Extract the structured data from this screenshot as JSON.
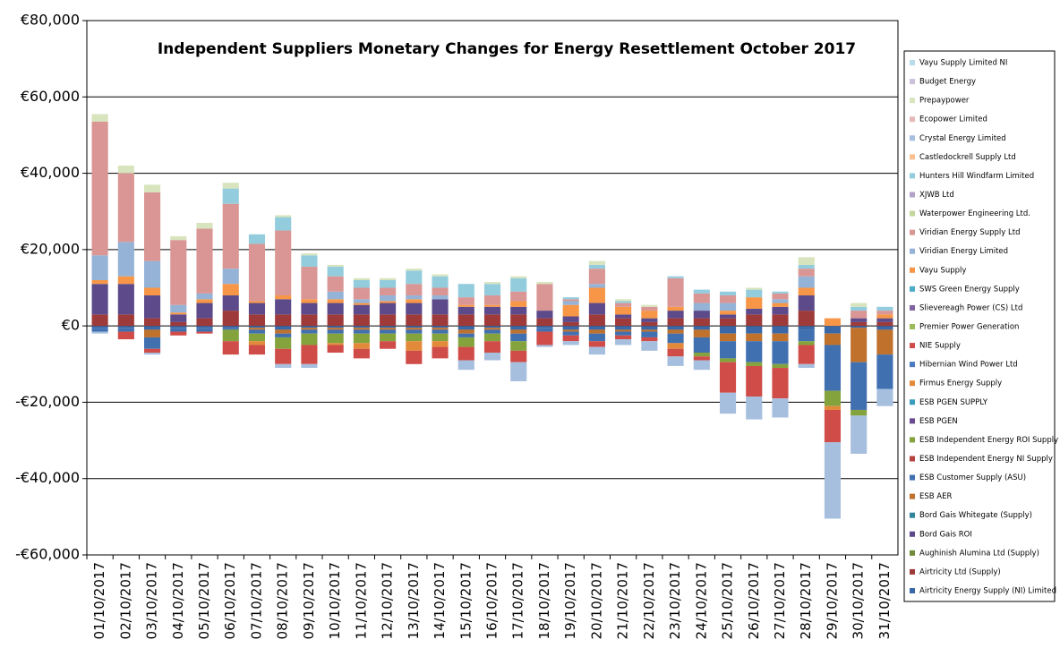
{
  "chart_data": {
    "type": "stacked_bar",
    "title": "Independent Suppliers Monetary Changes  for Energy Resettlement October 2017",
    "categories": [
      "01/10/2017",
      "02/10/2017",
      "03/10/2017",
      "04/10/2017",
      "05/10/2017",
      "06/10/2017",
      "07/10/2017",
      "08/10/2017",
      "09/10/2017",
      "10/10/2017",
      "11/10/2017",
      "12/10/2017",
      "13/10/2017",
      "14/10/2017",
      "15/10/2017",
      "16/10/2017",
      "17/10/2017",
      "18/10/2017",
      "19/10/2017",
      "20/10/2017",
      "21/10/2017",
      "22/10/2017",
      "23/10/2017",
      "24/10/2017",
      "25/10/2017",
      "26/10/2017",
      "27/10/2017",
      "28/10/2017",
      "29/10/2017",
      "30/10/2017",
      "31/10/2017"
    ],
    "ylim": [
      -60000,
      80000
    ],
    "yticks": [
      {
        "value": -60000,
        "label": "-€60,000"
      },
      {
        "value": -40000,
        "label": "-€40,000"
      },
      {
        "value": -20000,
        "label": "-€20,000"
      },
      {
        "value": 0,
        "label": "€0"
      },
      {
        "value": 20000,
        "label": "€20,000"
      },
      {
        "value": 40000,
        "label": "€40,000"
      },
      {
        "value": 60000,
        "label": "€60,000"
      },
      {
        "value": 80000,
        "label": "€80,000"
      }
    ],
    "grid": true,
    "legend": "right",
    "series": [
      {
        "name": "Airtricity Energy Supply (NI) Limited",
        "color": "#3a67a6",
        "values": [
          -500,
          -500,
          -1000,
          -500,
          -500,
          -500,
          -500,
          -1000,
          -500,
          -500,
          -500,
          -500,
          -500,
          -500,
          -1000,
          -500,
          -1000,
          -500,
          -1000,
          -1000,
          -1000,
          -1000,
          -1000,
          -1000,
          -2000,
          -2000,
          -2000,
          -1000,
          -2000,
          -500,
          -1000
        ]
      },
      {
        "name": "Airtricity Ltd (Supply)",
        "color": "#9e3b3a",
        "values": [
          3000,
          3000,
          2000,
          1000,
          2000,
          4000,
          3000,
          3000,
          3000,
          3000,
          3000,
          3000,
          3000,
          3000,
          3000,
          3000,
          3000,
          2000,
          1000,
          3000,
          2000,
          1000,
          2000,
          2000,
          2000,
          3000,
          3000,
          4000,
          0,
          1000,
          1000
        ]
      },
      {
        "name": "Aughinish Alumina Ltd (Supply)",
        "color": "#6e8a3a",
        "values": [
          0,
          0,
          0,
          0,
          0,
          0,
          0,
          0,
          0,
          0,
          0,
          0,
          0,
          0,
          0,
          0,
          0,
          0,
          0,
          0,
          0,
          0,
          0,
          0,
          0,
          0,
          0,
          0,
          0,
          0,
          0
        ]
      },
      {
        "name": "Bord Gais ROI",
        "color": "#5c4a8a",
        "values": [
          8000,
          8000,
          6000,
          2000,
          4000,
          4000,
          3000,
          4000,
          3000,
          3000,
          2500,
          3000,
          3000,
          4000,
          2000,
          2000,
          2000,
          2000,
          1500,
          3000,
          1000,
          1000,
          2000,
          2000,
          1000,
          1500,
          2000,
          4000,
          0,
          1000,
          1000
        ]
      },
      {
        "name": "Bord Gais Whitegate (Supply)",
        "color": "#31859c",
        "values": [
          0,
          0,
          0,
          0,
          0,
          0,
          0,
          0,
          0,
          0,
          0,
          0,
          0,
          0,
          0,
          0,
          0,
          0,
          0,
          0,
          0,
          0,
          0,
          0,
          0,
          0,
          0,
          0,
          0,
          0,
          0
        ]
      },
      {
        "name": "ESB AER",
        "color": "#c0712c",
        "values": [
          0,
          0,
          -2000,
          0,
          0,
          0,
          -500,
          -1000,
          -500,
          -500,
          -500,
          -500,
          -500,
          -500,
          -1000,
          -500,
          -1000,
          0,
          -500,
          -1000,
          -500,
          -500,
          -1000,
          -2000,
          -2000,
          -2000,
          -2000,
          0,
          -3000,
          -9000,
          -6500
        ]
      },
      {
        "name": "ESB Customer Supply (ASU)",
        "color": "#4170b0",
        "values": [
          -1000,
          -1000,
          -3000,
          -1000,
          -1000,
          -500,
          -1000,
          -1000,
          -1000,
          -1000,
          -1000,
          -1000,
          -1000,
          -1000,
          -1000,
          -1000,
          -2000,
          -1000,
          -1000,
          -2000,
          -1000,
          -1500,
          -2500,
          -4000,
          -4500,
          -5500,
          -6000,
          -3000,
          -12000,
          -12500,
          -9000
        ]
      },
      {
        "name": "ESB Independent Energy NI Supply",
        "color": "#b54441",
        "values": [
          0,
          0,
          0,
          0,
          0,
          0,
          0,
          0,
          0,
          0,
          0,
          0,
          0,
          0,
          0,
          0,
          0,
          0,
          0,
          0,
          0,
          0,
          0,
          0,
          0,
          0,
          0,
          0,
          0,
          0,
          0
        ]
      },
      {
        "name": "ESB Independent Energy ROI Supply",
        "color": "#84a33d",
        "values": [
          0,
          0,
          0,
          0,
          0,
          -3000,
          -2000,
          -3000,
          -3000,
          -2500,
          -2500,
          -2000,
          -2000,
          -2000,
          -2500,
          -2000,
          -2500,
          0,
          0,
          0,
          0,
          0,
          0,
          -1000,
          -1000,
          -1000,
          -1000,
          -1000,
          -4000,
          -1500,
          0
        ]
      },
      {
        "name": "ESB PGEN",
        "color": "#6a4c93",
        "values": [
          0,
          0,
          0,
          0,
          0,
          0,
          0,
          0,
          0,
          0,
          0,
          0,
          0,
          0,
          0,
          0,
          0,
          0,
          0,
          0,
          0,
          0,
          0,
          0,
          0,
          0,
          0,
          0,
          0,
          0,
          0
        ]
      },
      {
        "name": "ESB PGEN SUPPLY",
        "color": "#3a9cbe",
        "values": [
          0,
          0,
          0,
          0,
          0,
          0,
          0,
          0,
          0,
          0,
          0,
          0,
          0,
          0,
          0,
          0,
          0,
          0,
          0,
          0,
          0,
          0,
          0,
          0,
          0,
          0,
          0,
          0,
          0,
          0,
          0
        ]
      },
      {
        "name": "Firmus Energy Supply",
        "color": "#e28a3a",
        "values": [
          0,
          0,
          0,
          0,
          0,
          0,
          -1000,
          0,
          0,
          -500,
          -1500,
          0,
          -2500,
          -1500,
          0,
          0,
          0,
          0,
          0,
          0,
          0,
          0,
          -1500,
          0,
          0,
          0,
          0,
          0,
          -1000,
          0,
          0
        ]
      },
      {
        "name": "Hibernian Wind Power Ltd",
        "color": "#4a7bc0",
        "values": [
          0,
          0,
          0,
          0,
          0,
          0,
          0,
          0,
          0,
          0,
          0,
          0,
          0,
          0,
          0,
          0,
          0,
          0,
          0,
          0,
          0,
          0,
          0,
          0,
          0,
          0,
          0,
          0,
          0,
          0,
          0
        ]
      },
      {
        "name": "NIE Supply",
        "color": "#d04c48",
        "values": [
          0,
          -2000,
          -1000,
          -1000,
          -500,
          -3500,
          -2500,
          -4000,
          -5000,
          -2000,
          -2500,
          -2000,
          -3500,
          -3000,
          -3500,
          -3000,
          -3000,
          -3500,
          -1500,
          -1500,
          -1000,
          -1000,
          -2000,
          -1000,
          -8000,
          -8000,
          -8000,
          -5000,
          -8500,
          0,
          0
        ]
      },
      {
        "name": "Premier Power Generation",
        "color": "#9bbb59",
        "values": [
          0,
          0,
          0,
          0,
          0,
          0,
          0,
          0,
          0,
          0,
          0,
          0,
          0,
          0,
          0,
          0,
          0,
          0,
          0,
          0,
          0,
          0,
          0,
          0,
          0,
          0,
          0,
          0,
          0,
          0,
          0
        ]
      },
      {
        "name": "Slievereagh Power (CS) Ltd",
        "color": "#8064a2",
        "values": [
          0,
          0,
          0,
          0,
          0,
          0,
          0,
          0,
          0,
          0,
          0,
          0,
          0,
          0,
          0,
          0,
          0,
          0,
          0,
          0,
          0,
          0,
          0,
          0,
          0,
          0,
          0,
          0,
          0,
          0,
          0
        ]
      },
      {
        "name": "SWS Green Energy Supply",
        "color": "#4bacc6",
        "values": [
          0,
          0,
          0,
          0,
          0,
          0,
          0,
          0,
          0,
          0,
          0,
          0,
          0,
          0,
          0,
          0,
          0,
          0,
          0,
          0,
          0,
          0,
          0,
          0,
          0,
          0,
          0,
          0,
          0,
          0,
          0
        ]
      },
      {
        "name": "Vayu Supply",
        "color": "#f79646",
        "values": [
          1000,
          2000,
          2000,
          500,
          1000,
          3000,
          500,
          1000,
          1000,
          1000,
          500,
          500,
          1000,
          0,
          500,
          500,
          1500,
          0,
          3000,
          4000,
          2000,
          2000,
          1000,
          0,
          1000,
          3000,
          1000,
          2000,
          2000,
          0,
          1000
        ]
      },
      {
        "name": "Viridian Energy Limited",
        "color": "#95b3d7",
        "values": [
          6500,
          9000,
          7000,
          2000,
          1500,
          4000,
          0,
          0,
          0,
          2000,
          1000,
          1500,
          1000,
          1000,
          0,
          0,
          0,
          0,
          1000,
          1000,
          0,
          0,
          0,
          2000,
          2000,
          0,
          1000,
          3000,
          0,
          0,
          0
        ]
      },
      {
        "name": "Viridian Energy Supply Ltd",
        "color": "#d99694",
        "values": [
          35000,
          18000,
          18000,
          17000,
          17000,
          17000,
          15000,
          17000,
          8500,
          4000,
          3000,
          2000,
          3000,
          2000,
          2000,
          2500,
          2500,
          7000,
          500,
          4000,
          1000,
          1000,
          7500,
          2500,
          2000,
          0,
          1500,
          2000,
          0,
          2000,
          1000
        ]
      },
      {
        "name": "Waterpower Engineering Ltd.",
        "color": "#c3d69b",
        "values": [
          0,
          0,
          0,
          0,
          0,
          0,
          0,
          0,
          0,
          0,
          0,
          0,
          0,
          0,
          0,
          0,
          0,
          0,
          0,
          0,
          0,
          0,
          0,
          0,
          0,
          0,
          0,
          0,
          0,
          0,
          0
        ]
      },
      {
        "name": "XJWB Ltd",
        "color": "#b3a2c7",
        "values": [
          0,
          0,
          0,
          0,
          0,
          0,
          0,
          0,
          0,
          0,
          0,
          0,
          0,
          0,
          0,
          0,
          0,
          0,
          0,
          0,
          0,
          0,
          0,
          0,
          0,
          0,
          0,
          0,
          0,
          0,
          0
        ]
      },
      {
        "name": "Hunters Hill Windfarm Limited",
        "color": "#93cddd",
        "values": [
          0,
          0,
          0,
          0,
          0,
          4000,
          2500,
          3500,
          3000,
          2500,
          2000,
          2000,
          3500,
          3000,
          3500,
          3000,
          3500,
          0,
          500,
          1000,
          500,
          0,
          500,
          1000,
          1000,
          2000,
          500,
          1000,
          0,
          1000,
          1000
        ]
      },
      {
        "name": "Castledockrell Supply Ltd",
        "color": "#fac090",
        "values": [
          0,
          0,
          0,
          0,
          0,
          0,
          0,
          0,
          0,
          0,
          0,
          0,
          0,
          0,
          0,
          0,
          0,
          0,
          0,
          0,
          0,
          0,
          0,
          0,
          0,
          0,
          0,
          0,
          0,
          0,
          0
        ]
      },
      {
        "name": "Crystal Energy Limited",
        "color": "#a7bfde",
        "values": [
          -500,
          0,
          -500,
          0,
          0,
          0,
          0,
          -1000,
          -1000,
          0,
          0,
          0,
          0,
          0,
          -2500,
          -2000,
          -5000,
          -500,
          -1000,
          -2000,
          -1500,
          -2500,
          -2500,
          -2500,
          -5500,
          -6000,
          -5000,
          -1000,
          -20000,
          -10000,
          -4500
        ]
      },
      {
        "name": "Ecopower Limited",
        "color": "#e6b9b8",
        "values": [
          0,
          0,
          0,
          0,
          0,
          0,
          0,
          0,
          0,
          0,
          0,
          0,
          0,
          0,
          0,
          0,
          0,
          0,
          0,
          0,
          0,
          0,
          0,
          0,
          0,
          0,
          0,
          0,
          0,
          0,
          0
        ]
      },
      {
        "name": "Prepaypower",
        "color": "#d7e4bd",
        "values": [
          2000,
          2000,
          2000,
          1000,
          1500,
          1500,
          0,
          500,
          500,
          500,
          500,
          500,
          500,
          500,
          0,
          500,
          500,
          500,
          0,
          1000,
          500,
          500,
          0,
          0,
          0,
          500,
          0,
          2000,
          0,
          1000,
          0
        ]
      },
      {
        "name": "Budget Energy",
        "color": "#ccc1da",
        "values": [
          0,
          0,
          0,
          0,
          0,
          0,
          0,
          0,
          0,
          0,
          0,
          0,
          0,
          0,
          0,
          0,
          0,
          0,
          0,
          0,
          0,
          0,
          0,
          0,
          0,
          0,
          0,
          0,
          0,
          0,
          0
        ]
      },
      {
        "name": "Vayu Supply Limited NI",
        "color": "#b7dee8",
        "values": [
          0,
          0,
          0,
          0,
          0,
          0,
          0,
          0,
          0,
          0,
          0,
          0,
          0,
          0,
          0,
          0,
          0,
          0,
          0,
          0,
          0,
          0,
          0,
          0,
          0,
          0,
          0,
          0,
          0,
          0,
          0
        ]
      }
    ]
  }
}
